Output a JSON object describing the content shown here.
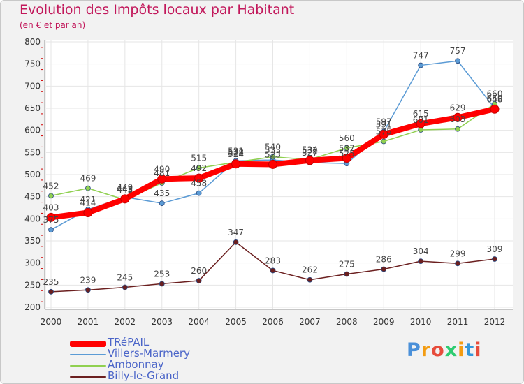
{
  "chart_data": {
    "type": "line",
    "title": "Evolution des Impôts locaux par Habitant",
    "subtitle": "(en € et par an)",
    "xlabel": "",
    "ylabel": "",
    "ylim": [
      200,
      800
    ],
    "yticks": [
      200,
      250,
      300,
      350,
      400,
      450,
      500,
      550,
      600,
      650,
      700,
      750,
      800
    ],
    "categories": [
      "2000",
      "2001",
      "2002",
      "2003",
      "2004",
      "2005",
      "2006",
      "2007",
      "2008",
      "2009",
      "2010",
      "2011",
      "2012"
    ],
    "grid": true,
    "legend_position": "bottom-left",
    "series": [
      {
        "name": "TRéPAIL",
        "color": "#ff0000",
        "values": [
          403,
          414,
          445,
          490,
          492,
          524,
          523,
          532,
          537,
          591,
          615,
          629,
          648
        ],
        "labels": [
          "403",
          "414",
          "445",
          "490",
          "492",
          "524",
          "523",
          "532",
          "537",
          "591",
          "615",
          "629",
          "648"
        ]
      },
      {
        "name": "Villers-Marmery",
        "color": "#5b9bd5",
        "values": [
          375,
          421,
          449,
          435,
          458,
          531,
          533,
          527,
          525,
          597,
          747,
          757,
          650
        ],
        "labels": [
          "375",
          "421",
          "449",
          "435",
          "458",
          "531",
          "533",
          "527",
          "525",
          "597",
          "747",
          "757",
          "650"
        ]
      },
      {
        "name": "Ambonnay",
        "color": "#90d050",
        "values": [
          452,
          469,
          443,
          481,
          515,
          528,
          540,
          534,
          560,
          575,
          601,
          603,
          660
        ],
        "labels": [
          "452",
          "469",
          "443",
          "481",
          "515",
          "528",
          "540",
          "534",
          "560",
          "575",
          "601",
          "603",
          "660"
        ]
      },
      {
        "name": "Billy-le-Grand",
        "color": "#6b1f1f",
        "values": [
          235,
          239,
          245,
          253,
          260,
          347,
          283,
          262,
          275,
          286,
          304,
          299,
          309
        ],
        "labels": [
          "235",
          "239",
          "245",
          "253",
          "260",
          "347",
          "283",
          "262",
          "275",
          "286",
          "304",
          "299",
          "309"
        ]
      }
    ]
  },
  "brand": {
    "text": "Proxiti"
  }
}
